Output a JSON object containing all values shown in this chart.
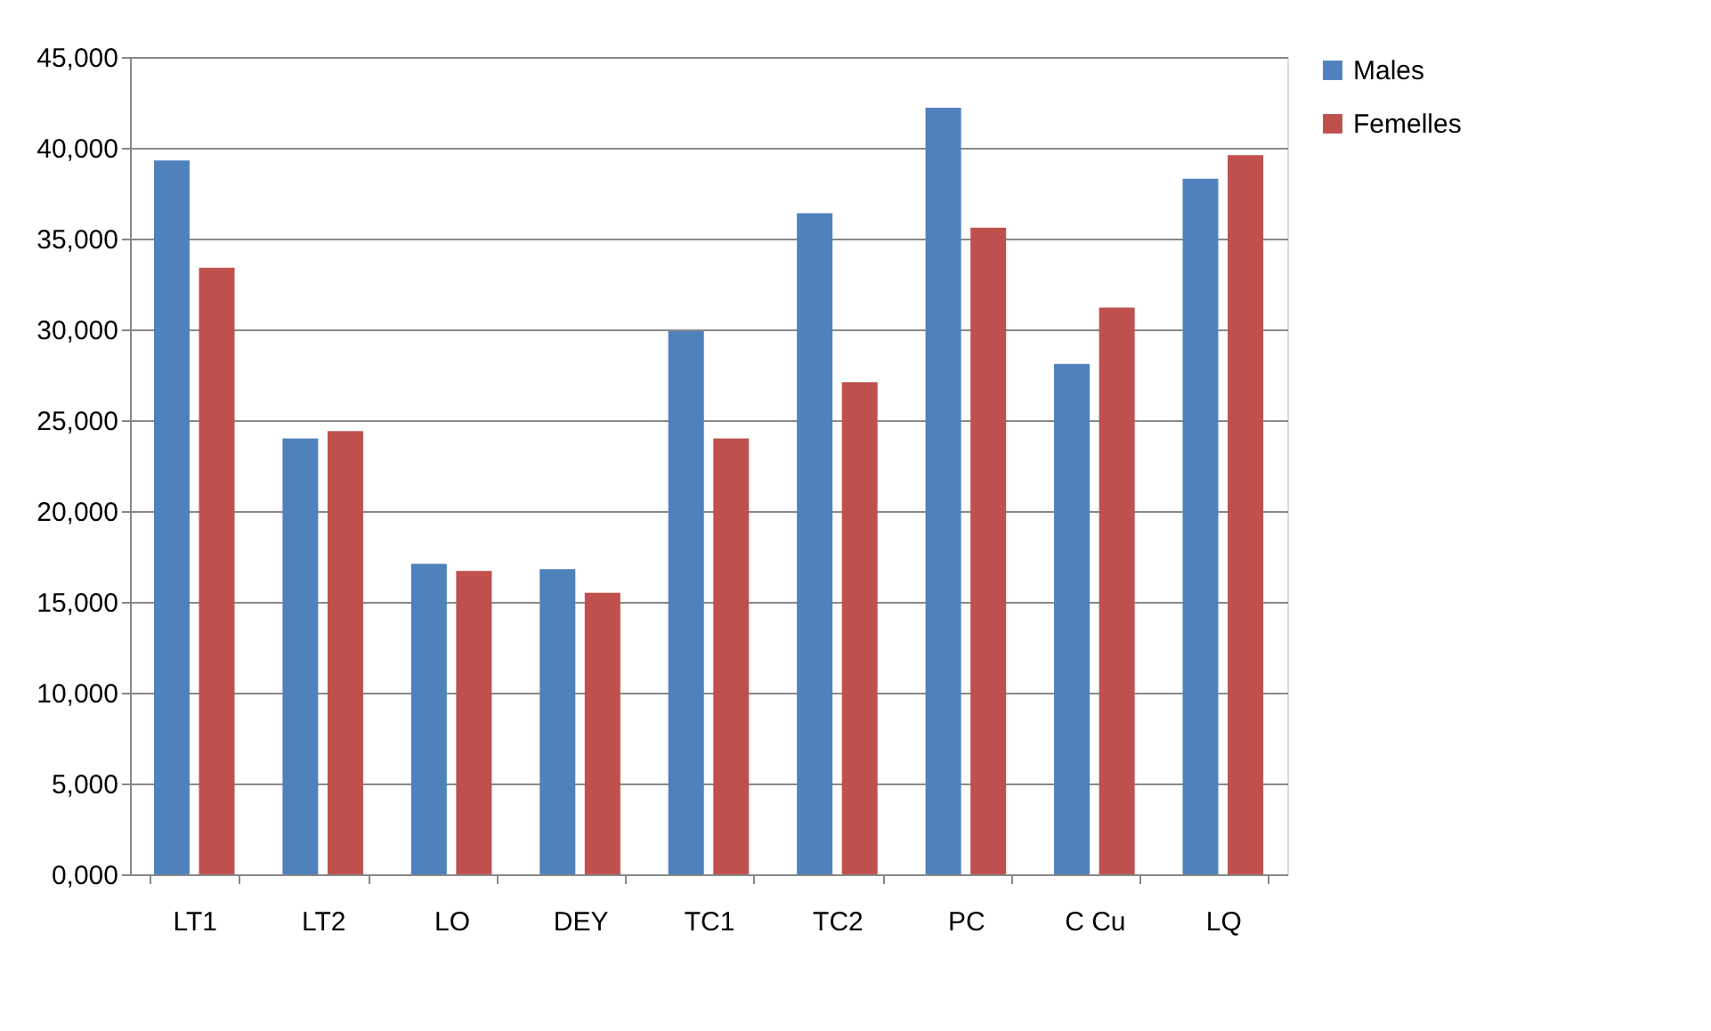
{
  "chart_data": {
    "type": "bar",
    "categories": [
      "LT1",
      "LT2",
      "LO",
      "DEY",
      "TC1",
      "TC2",
      "PC",
      "C Cu",
      "LQ"
    ],
    "series": [
      {
        "name": "Males",
        "color": "#4f81bd",
        "values": [
          39300,
          24000,
          17100,
          16800,
          29900,
          36400,
          42200,
          28100,
          38300
        ]
      },
      {
        "name": "Femelles",
        "color": "#c0504d",
        "values": [
          33400,
          24400,
          16700,
          15500,
          24000,
          27100,
          35600,
          31200,
          39600
        ]
      }
    ],
    "ylim": [
      0,
      45000
    ],
    "yticks": [
      {
        "value": 0,
        "label": "0,000"
      },
      {
        "value": 5000,
        "label": "5,000"
      },
      {
        "value": 10000,
        "label": "10,000"
      },
      {
        "value": 15000,
        "label": "15,000"
      },
      {
        "value": 20000,
        "label": "20,000"
      },
      {
        "value": 25000,
        "label": "25,000"
      },
      {
        "value": 30000,
        "label": "30,000"
      },
      {
        "value": 35000,
        "label": "35,000"
      },
      {
        "value": 40000,
        "label": "40,000"
      },
      {
        "value": 45000,
        "label": "45,000"
      }
    ],
    "grid": "y",
    "legend": "right"
  }
}
